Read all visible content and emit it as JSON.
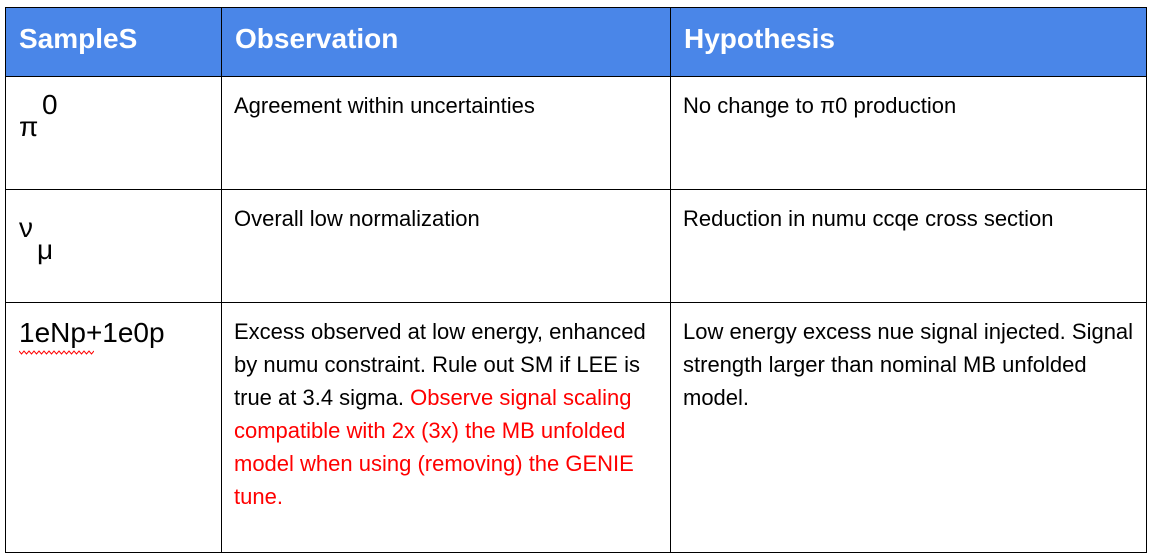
{
  "headers": {
    "samples": "SampleS",
    "observation": "Observation",
    "hypothesis": "Hypothesis"
  },
  "rows": [
    {
      "sample": {
        "symbol": "π",
        "sup": "0"
      },
      "observation": "Agreement within uncertainties",
      "hypothesis": "No change to π0 production"
    },
    {
      "sample": {
        "symbol": "ν",
        "sub": "μ"
      },
      "observation": "Overall low normalization",
      "hypothesis": "Reduction in numu ccqe cross section"
    },
    {
      "sample": {
        "text": "1eNp+1e0p"
      },
      "observation": {
        "black": "Excess observed at low energy, enhanced by numu constraint. Rule out SM if LEE is true at 3.4 sigma. ",
        "red": "Observe signal scaling compatible with 2x (3x) the MB unfolded model when using (removing) the GENIE tune."
      },
      "hypothesis": "Low energy excess nue signal injected. Signal strength larger than nominal MB unfolded model."
    }
  ],
  "colors": {
    "header_bg": "#4a86e8",
    "header_text": "#ffffff",
    "highlight_text": "#ff0000",
    "spellcheck_squiggle": "#ff0000"
  }
}
